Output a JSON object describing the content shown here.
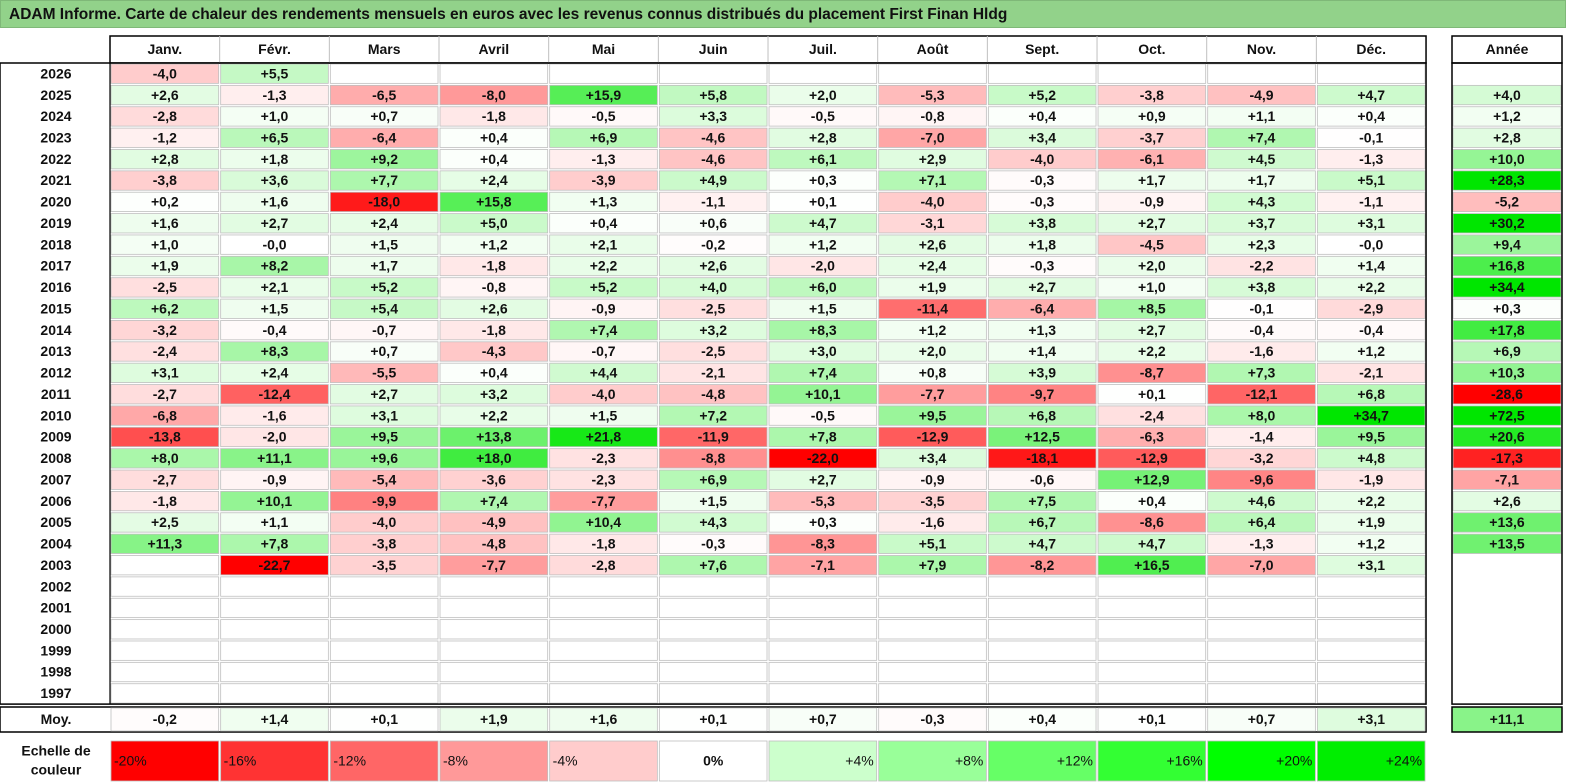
{
  "title": "ADAM Informe. Carte de chaleur des rendements mensuels en euros avec les revenus connus distribués du placement First Finan Hldg",
  "chart_data": {
    "type": "heatmap",
    "title": "ADAM Informe. Carte de chaleur des rendements mensuels en euros avec les revenus connus distribués du placement First Finan Hldg",
    "columns": [
      "Janv.",
      "Févr.",
      "Mars",
      "Avril",
      "Mai",
      "Juin",
      "Juil.",
      "Août",
      "Sept.",
      "Oct.",
      "Nov.",
      "Déc."
    ],
    "year_column_label": "Année",
    "rows": [
      {
        "year": "2026",
        "months": [
          "-4,0",
          "+5,5",
          "",
          "",
          "",
          "",
          "",
          "",
          "",
          "",
          "",
          ""
        ],
        "annual": ""
      },
      {
        "year": "2025",
        "months": [
          "+2,6",
          "-1,3",
          "-6,5",
          "-8,0",
          "+15,9",
          "+5,8",
          "+2,0",
          "-5,3",
          "+5,2",
          "-3,8",
          "-4,9",
          "+4,7"
        ],
        "annual": "+4,0"
      },
      {
        "year": "2024",
        "months": [
          "-2,8",
          "+1,0",
          "+0,7",
          "-1,8",
          "-0,5",
          "+3,3",
          "-0,5",
          "-0,8",
          "+0,4",
          "+0,9",
          "+1,1",
          "+0,4"
        ],
        "annual": "+1,2"
      },
      {
        "year": "2023",
        "months": [
          "-1,2",
          "+6,5",
          "-6,4",
          "+0,4",
          "+6,9",
          "-4,6",
          "+2,8",
          "-7,0",
          "+3,4",
          "-3,7",
          "+7,4",
          "-0,1"
        ],
        "annual": "+2,8"
      },
      {
        "year": "2022",
        "months": [
          "+2,8",
          "+1,8",
          "+9,2",
          "+0,4",
          "-1,3",
          "-4,6",
          "+6,1",
          "+2,9",
          "-4,0",
          "-6,1",
          "+4,5",
          "-1,3"
        ],
        "annual": "+10,0"
      },
      {
        "year": "2021",
        "months": [
          "-3,8",
          "+3,6",
          "+7,7",
          "+2,4",
          "-3,9",
          "+4,9",
          "+0,3",
          "+7,1",
          "-0,3",
          "+1,7",
          "+1,7",
          "+5,1"
        ],
        "annual": "+28,3"
      },
      {
        "year": "2020",
        "months": [
          "+0,2",
          "+1,6",
          "-18,0",
          "+15,8",
          "+1,3",
          "-1,1",
          "+0,1",
          "-4,0",
          "-0,3",
          "-0,9",
          "+4,3",
          "-1,1"
        ],
        "annual": "-5,2"
      },
      {
        "year": "2019",
        "months": [
          "+1,6",
          "+2,7",
          "+2,4",
          "+5,0",
          "+0,4",
          "+0,6",
          "+4,7",
          "-3,1",
          "+3,8",
          "+2,7",
          "+3,7",
          "+3,1"
        ],
        "annual": "+30,2"
      },
      {
        "year": "2018",
        "months": [
          "+1,0",
          "-0,0",
          "+1,5",
          "+1,2",
          "+2,1",
          "-0,2",
          "+1,2",
          "+2,6",
          "+1,8",
          "-4,5",
          "+2,3",
          "-0,0"
        ],
        "annual": "+9,4"
      },
      {
        "year": "2017",
        "months": [
          "+1,9",
          "+8,2",
          "+1,7",
          "-1,8",
          "+2,2",
          "+2,6",
          "-2,0",
          "+2,4",
          "-0,3",
          "+2,0",
          "-2,2",
          "+1,4"
        ],
        "annual": "+16,8"
      },
      {
        "year": "2016",
        "months": [
          "-2,5",
          "+2,1",
          "+5,2",
          "-0,8",
          "+5,2",
          "+4,0",
          "+6,0",
          "+1,9",
          "+2,7",
          "+1,0",
          "+3,8",
          "+2,2"
        ],
        "annual": "+34,4"
      },
      {
        "year": "2015",
        "months": [
          "+6,2",
          "+1,5",
          "+5,4",
          "+2,6",
          "-0,9",
          "-2,5",
          "+1,5",
          "-11,4",
          "-6,4",
          "+8,5",
          "-0,1",
          "-2,9"
        ],
        "annual": "+0,3"
      },
      {
        "year": "2014",
        "months": [
          "-3,2",
          "-0,4",
          "-0,7",
          "-1,8",
          "+7,4",
          "+3,2",
          "+8,3",
          "+1,2",
          "+1,3",
          "+2,7",
          "-0,4",
          "-0,4"
        ],
        "annual": "+17,8"
      },
      {
        "year": "2013",
        "months": [
          "-2,4",
          "+8,3",
          "+0,7",
          "-4,3",
          "-0,7",
          "-2,5",
          "+3,0",
          "+2,0",
          "+1,4",
          "+2,2",
          "-1,6",
          "+1,2"
        ],
        "annual": "+6,9"
      },
      {
        "year": "2012",
        "months": [
          "+3,1",
          "+2,4",
          "-5,5",
          "+0,4",
          "+4,4",
          "-2,1",
          "+7,4",
          "+0,8",
          "+3,9",
          "-8,7",
          "+7,3",
          "-2,1"
        ],
        "annual": "+10,3"
      },
      {
        "year": "2011",
        "months": [
          "-2,7",
          "-12,4",
          "+2,7",
          "+3,2",
          "-4,0",
          "-4,8",
          "+10,1",
          "-7,7",
          "-9,7",
          "+0,1",
          "-12,1",
          "+6,8"
        ],
        "annual": "-28,6"
      },
      {
        "year": "2010",
        "months": [
          "-6,8",
          "-1,6",
          "+3,1",
          "+2,2",
          "+1,5",
          "+7,2",
          "-0,5",
          "+9,5",
          "+6,8",
          "-2,4",
          "+8,0",
          "+34,7"
        ],
        "annual": "+72,5"
      },
      {
        "year": "2009",
        "months": [
          "-13,8",
          "-2,0",
          "+9,5",
          "+13,8",
          "+21,8",
          "-11,9",
          "+7,8",
          "-12,9",
          "+12,5",
          "-6,3",
          "-1,4",
          "+9,5"
        ],
        "annual": "+20,6"
      },
      {
        "year": "2008",
        "months": [
          "+8,0",
          "+11,1",
          "+9,6",
          "+18,0",
          "-2,3",
          "-8,8",
          "-22,0",
          "+3,4",
          "-18,1",
          "-12,9",
          "-3,2",
          "+4,8"
        ],
        "annual": "-17,3"
      },
      {
        "year": "2007",
        "months": [
          "-2,7",
          "-0,9",
          "-5,4",
          "-3,6",
          "-2,3",
          "+6,9",
          "+2,7",
          "-0,9",
          "-0,6",
          "+12,9",
          "-9,6",
          "-1,9"
        ],
        "annual": "-7,1"
      },
      {
        "year": "2006",
        "months": [
          "-1,8",
          "+10,1",
          "-9,9",
          "+7,4",
          "-7,7",
          "+1,5",
          "-5,3",
          "-3,5",
          "+7,5",
          "+0,4",
          "+4,6",
          "+2,2"
        ],
        "annual": "+2,6"
      },
      {
        "year": "2005",
        "months": [
          "+2,5",
          "+1,1",
          "-4,0",
          "-4,9",
          "+10,4",
          "+4,3",
          "+0,3",
          "-1,6",
          "+6,7",
          "-8,6",
          "+6,4",
          "+1,9"
        ],
        "annual": "+13,6"
      },
      {
        "year": "2004",
        "months": [
          "+11,3",
          "+7,8",
          "-3,8",
          "-4,8",
          "-1,8",
          "-0,3",
          "-8,3",
          "+5,1",
          "+4,7",
          "+4,7",
          "-1,3",
          "+1,2"
        ],
        "annual": "+13,5"
      },
      {
        "year": "2003",
        "months": [
          "",
          "-22,7",
          "-3,5",
          "-7,7",
          "-2,8",
          "+7,6",
          "-7,1",
          "+7,9",
          "-8,2",
          "+16,5",
          "-7,0",
          "+3,1"
        ],
        "annual": ""
      },
      {
        "year": "2002",
        "months": [
          "",
          "",
          "",
          "",
          "",
          "",
          "",
          "",
          "",
          "",
          "",
          ""
        ],
        "annual": ""
      },
      {
        "year": "2001",
        "months": [
          "",
          "",
          "",
          "",
          "",
          "",
          "",
          "",
          "",
          "",
          "",
          ""
        ],
        "annual": ""
      },
      {
        "year": "2000",
        "months": [
          "",
          "",
          "",
          "",
          "",
          "",
          "",
          "",
          "",
          "",
          "",
          ""
        ],
        "annual": ""
      },
      {
        "year": "1999",
        "months": [
          "",
          "",
          "",
          "",
          "",
          "",
          "",
          "",
          "",
          "",
          "",
          ""
        ],
        "annual": ""
      },
      {
        "year": "1998",
        "months": [
          "",
          "",
          "",
          "",
          "",
          "",
          "",
          "",
          "",
          "",
          "",
          ""
        ],
        "annual": ""
      },
      {
        "year": "1997",
        "months": [
          "",
          "",
          "",
          "",
          "",
          "",
          "",
          "",
          "",
          "",
          "",
          ""
        ],
        "annual": ""
      }
    ],
    "average": {
      "label": "Moy.",
      "months": [
        "-0,2",
        "+1,4",
        "+0,1",
        "+1,9",
        "+1,6",
        "+0,1",
        "+0,7",
        "-0,3",
        "+0,4",
        "+0,1",
        "+0,7",
        "+3,1"
      ],
      "annual": "+11,1"
    },
    "color_scale": {
      "label_line1": "Echelle de",
      "label_line2": "couleur",
      "steps": [
        {
          "label": "-20%",
          "color": "#ff0000"
        },
        {
          "label": "-16%",
          "color": "#ff3333"
        },
        {
          "label": "-12%",
          "color": "#ff6666"
        },
        {
          "label": "-8%",
          "color": "#ff9999"
        },
        {
          "label": "-4%",
          "color": "#ffcccc"
        },
        {
          "label": "0%",
          "color": "#ffffff"
        },
        {
          "label": "+4%",
          "color": "#ccffcc"
        },
        {
          "label": "+8%",
          "color": "#99ff99"
        },
        {
          "label": "+12%",
          "color": "#66ff66"
        },
        {
          "label": "+16%",
          "color": "#33ff33"
        },
        {
          "label": "+20%",
          "color": "#00ff00"
        },
        {
          "label": "+24%",
          "color": "#00ee00"
        }
      ]
    },
    "colors": {
      "negative_max": "#ff0000",
      "zero": "#ffffff",
      "positive_max": "#00e600",
      "title_bg": "#92d28a",
      "grid": "#bfbfbf"
    }
  }
}
